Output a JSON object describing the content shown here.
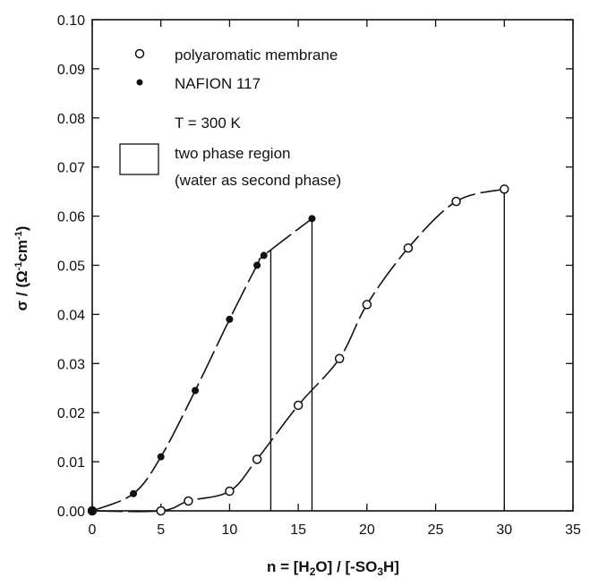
{
  "chart_data": {
    "type": "scatter",
    "xlabel": "n = [H2O] / [-SO3H]",
    "ylabel": "σ / (Ω⁻¹cm⁻¹)",
    "xlim": [
      0,
      35
    ],
    "ylim": [
      0,
      0.1
    ],
    "x_ticks": [
      "0",
      "5",
      "10",
      "15",
      "20",
      "25",
      "30",
      "35"
    ],
    "y_ticks": [
      "0.00",
      "0.01",
      "0.02",
      "0.03",
      "0.04",
      "0.05",
      "0.06",
      "0.07",
      "0.08",
      "0.09",
      "0.10"
    ],
    "grid": false,
    "legend_position": "top-left",
    "series": [
      {
        "name": "polyaromatic membrane",
        "marker": "open-circle",
        "x": [
          0,
          5,
          7,
          10,
          12,
          15,
          18,
          20,
          23,
          26.5,
          30
        ],
        "y": [
          0.0,
          0.0,
          0.002,
          0.004,
          0.0105,
          0.0215,
          0.031,
          0.042,
          0.0535,
          0.063,
          0.0655
        ]
      },
      {
        "name": "NAFION 117",
        "marker": "filled-circle",
        "x": [
          0,
          3,
          5,
          7.5,
          10,
          12,
          12.5,
          16
        ],
        "y": [
          0.0,
          0.0035,
          0.011,
          0.0245,
          0.039,
          0.05,
          0.052,
          0.0595
        ]
      }
    ],
    "vertical_lines": [
      {
        "x": 13,
        "y_top": 0.053
      },
      {
        "x": 16,
        "y_top": 0.0595
      },
      {
        "x": 30,
        "y_top": 0.0655
      }
    ],
    "annotations": {
      "temperature": "T = 300 K",
      "region_line1": "two phase region",
      "region_line2": "(water as second phase)"
    }
  }
}
